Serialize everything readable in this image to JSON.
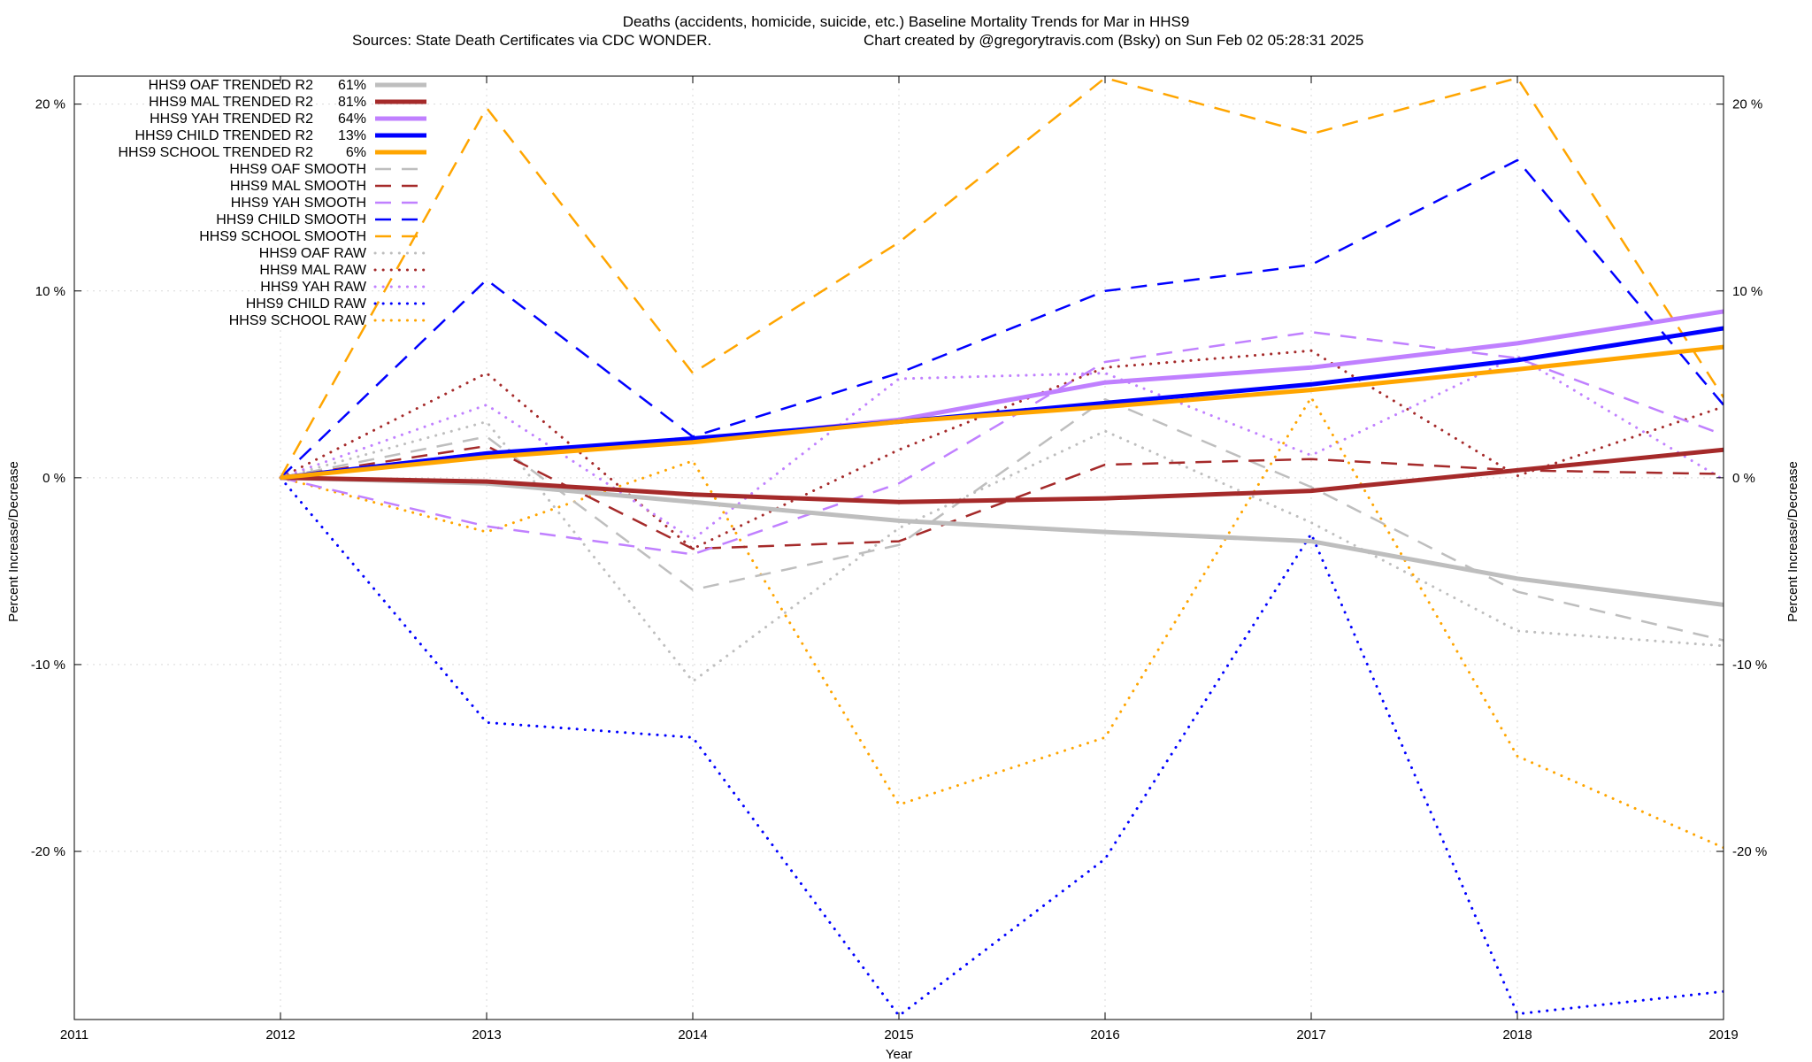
{
  "chart_data": {
    "type": "line",
    "title_line1": "Deaths (accidents, homicide, suicide, etc.)  Baseline Mortality Trends for Mar in HHS9",
    "title_line2_left": "Sources: State Death Certificates via CDC WONDER.",
    "title_line2_right": "Chart created by @gregorytravis.com (Bsky) on Sun Feb 02 05:28:31 2025",
    "xlabel": "Year",
    "ylabel_left": "Percent Increase/Decrease",
    "ylabel_right": "Percent Increase/Decrease",
    "xlim": [
      2011,
      2019
    ],
    "ylim": [
      -29,
      21.5
    ],
    "x_ticks": [
      "2011",
      "2012",
      "2013",
      "2014",
      "2015",
      "2016",
      "2017",
      "2018",
      "2019"
    ],
    "y_ticks": [
      {
        "value": 20,
        "label": "20 %"
      },
      {
        "value": 10,
        "label": "10 %"
      },
      {
        "value": 0,
        "label": "0 %"
      },
      {
        "value": -10,
        "label": "-10 %"
      },
      {
        "value": -20,
        "label": "-20 %"
      }
    ],
    "y_ticks_right": [
      {
        "value": 20,
        "label": "20 %"
      },
      {
        "value": 10,
        "label": "10 %"
      },
      {
        "value": 0,
        "label": "0 %"
      },
      {
        "value": -10,
        "label": "-10 %"
      },
      {
        "value": -20,
        "label": "-20 %"
      }
    ],
    "grid": true,
    "legend_position": "top-left",
    "x": [
      2012,
      2013,
      2014,
      2015,
      2016,
      2017,
      2018,
      2019
    ],
    "series": [
      {
        "name": "HHS9 OAF TRENDED R2",
        "r2": "61%",
        "style": "solid",
        "color": "#bebebe",
        "values": [
          0,
          -0.3,
          -1.3,
          -2.3,
          -2.9,
          -3.4,
          -5.4,
          -6.8
        ]
      },
      {
        "name": "HHS9 MAL TRENDED R2",
        "r2": "81%",
        "style": "solid",
        "color": "#a52a2a",
        "values": [
          0,
          -0.2,
          -0.9,
          -1.3,
          -1.1,
          -0.7,
          0.4,
          1.5
        ]
      },
      {
        "name": "HHS9 YAH TRENDED R2",
        "r2": "64%",
        "style": "solid",
        "color": "#c080ff",
        "values": [
          0,
          1.3,
          2.0,
          3.1,
          5.1,
          5.9,
          7.2,
          8.9
        ]
      },
      {
        "name": "HHS9 CHILD TRENDED R2",
        "r2": "13%",
        "style": "solid",
        "color": "#0000ff",
        "values": [
          0,
          1.3,
          2.1,
          3.0,
          4.0,
          5.0,
          6.3,
          8.0
        ]
      },
      {
        "name": "HHS9 SCHOOL TRENDED R2",
        "r2": "6%",
        "style": "solid",
        "color": "#ffa500",
        "values": [
          0,
          1.1,
          1.9,
          3.0,
          3.8,
          4.7,
          5.8,
          7.0
        ]
      },
      {
        "name": "HHS9 OAF SMOOTH",
        "style": "dashed",
        "color": "#bebebe",
        "values": [
          0,
          2.2,
          -6.0,
          -3.6,
          4.2,
          -0.5,
          -6.1,
          -8.7
        ]
      },
      {
        "name": "HHS9 MAL SMOOTH",
        "style": "dashed",
        "color": "#a52a2a",
        "values": [
          0,
          1.7,
          -3.8,
          -3.4,
          0.7,
          1.0,
          0.4,
          0.2
        ]
      },
      {
        "name": "HHS9 YAH SMOOTH",
        "style": "dashed",
        "color": "#c080ff",
        "values": [
          0,
          -2.6,
          -4.1,
          -0.3,
          6.2,
          7.8,
          6.4,
          2.3
        ]
      },
      {
        "name": "HHS9 CHILD SMOOTH",
        "style": "dashed",
        "color": "#0000ff",
        "values": [
          0,
          10.6,
          2.2,
          5.6,
          10.0,
          11.4,
          17.0,
          3.9
        ]
      },
      {
        "name": "HHS9 SCHOOL SMOOTH",
        "style": "dashed",
        "color": "#ffa500",
        "values": [
          0,
          19.8,
          5.6,
          12.6,
          21.4,
          18.4,
          21.4,
          4.3
        ]
      },
      {
        "name": "HHS9 OAF RAW",
        "style": "dotted",
        "color": "#bebebe",
        "values": [
          0,
          3.0,
          -10.9,
          -2.7,
          2.5,
          -2.4,
          -8.2,
          -9.0
        ]
      },
      {
        "name": "HHS9 MAL RAW",
        "style": "dotted",
        "color": "#a52a2a",
        "values": [
          0,
          5.6,
          -3.8,
          1.5,
          5.9,
          6.8,
          0.1,
          3.8
        ]
      },
      {
        "name": "HHS9 YAH RAW",
        "style": "dotted",
        "color": "#c080ff",
        "values": [
          0,
          3.9,
          -3.3,
          5.3,
          5.6,
          1.2,
          6.5,
          -0.1
        ]
      },
      {
        "name": "HHS9 CHILD RAW",
        "style": "dotted",
        "color": "#0000ff",
        "values": [
          0,
          -13.1,
          -13.9,
          -28.8,
          -20.4,
          -3.0,
          -28.7,
          -27.5
        ]
      },
      {
        "name": "HHS9 SCHOOL RAW",
        "style": "dotted",
        "color": "#ffa500",
        "values": [
          0,
          -2.9,
          0.9,
          -17.5,
          -13.9,
          4.3,
          -14.9,
          -19.8
        ]
      }
    ]
  }
}
